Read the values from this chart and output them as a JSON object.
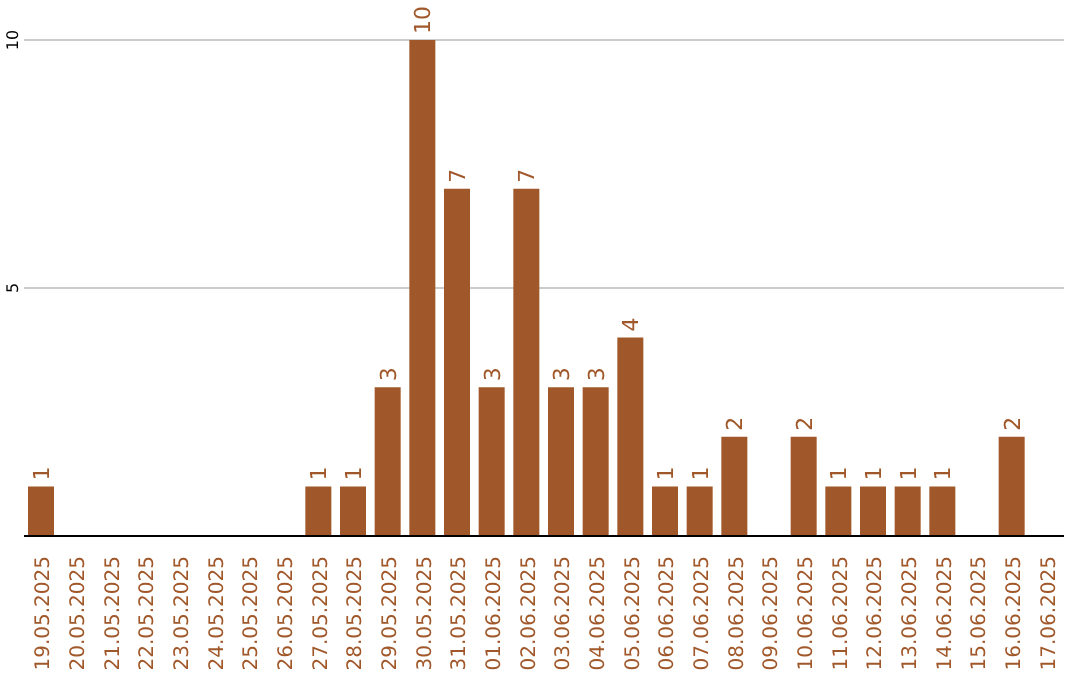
{
  "chart_data": {
    "type": "bar",
    "categories": [
      "19.05.2025",
      "20.05.2025",
      "21.05.2025",
      "22.05.2025",
      "23.05.2025",
      "24.05.2025",
      "25.05.2025",
      "26.05.2025",
      "27.05.2025",
      "28.05.2025",
      "29.05.2025",
      "30.05.2025",
      "31.05.2025",
      "01.06.2025",
      "02.06.2025",
      "03.06.2025",
      "04.06.2025",
      "05.06.2025",
      "06.06.2025",
      "07.06.2025",
      "08.06.2025",
      "09.06.2025",
      "10.06.2025",
      "11.06.2025",
      "12.06.2025",
      "13.06.2025",
      "14.06.2025",
      "15.06.2025",
      "16.06.2025",
      "17.06.2025"
    ],
    "values": [
      1,
      0,
      0,
      0,
      0,
      0,
      0,
      0,
      1,
      1,
      3,
      10,
      7,
      3,
      7,
      3,
      3,
      4,
      1,
      1,
      2,
      0,
      2,
      1,
      1,
      1,
      1,
      0,
      2,
      0
    ],
    "value_labels": [
      "1",
      null,
      null,
      null,
      null,
      null,
      null,
      null,
      "1",
      "1",
      "3",
      "10",
      "7",
      "3",
      "7",
      "3",
      "3",
      "4",
      "1",
      "1",
      "2",
      null,
      "2",
      "1",
      "1",
      "1",
      "1",
      null,
      "2",
      null
    ],
    "color": "#a0582a",
    "ylim": [
      0,
      10
    ],
    "yticks": [
      5,
      10
    ],
    "grid": "y"
  }
}
